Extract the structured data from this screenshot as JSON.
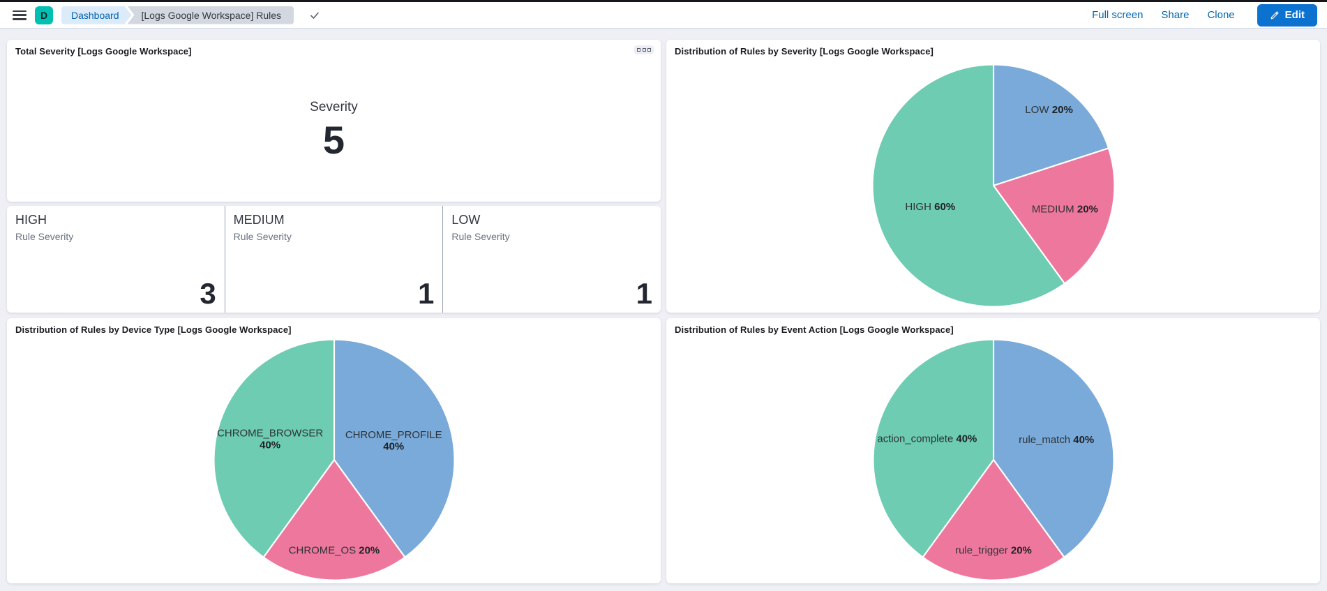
{
  "topbar": {
    "space_avatar": {
      "label": "D",
      "color": "#00BFB3"
    },
    "breadcrumbs": [
      {
        "label": "Dashboard"
      },
      {
        "label": "[Logs Google Workspace] Rules"
      }
    ],
    "actions": [
      {
        "label": "Full screen"
      },
      {
        "label": "Share"
      },
      {
        "label": "Clone"
      }
    ],
    "edit_button": {
      "label": "Edit",
      "icon": "pencil-icon"
    }
  },
  "colors": {
    "accent_space": "#00BFB3",
    "primary_button": "#0b72d0",
    "link": "#0066ae",
    "pie_green": "#6DCCB1",
    "pie_blue": "#79AAD9",
    "pie_pink": "#EE789D"
  },
  "panels": {
    "total_severity": {
      "title": "Total Severity [Logs Google Workspace]",
      "metric": {
        "label": "Severity",
        "value": "5"
      }
    },
    "severity_breakdown": {
      "metrics": [
        {
          "title": "HIGH",
          "subtitle": "Rule Severity",
          "value": "3"
        },
        {
          "title": "MEDIUM",
          "subtitle": "Rule Severity",
          "value": "1"
        },
        {
          "title": "LOW",
          "subtitle": "Rule Severity",
          "value": "1"
        }
      ]
    }
  },
  "chart_data": [
    {
      "id": "severity_pie",
      "type": "pie",
      "title": "Distribution of Rules by Severity [Logs Google Workspace]",
      "legend": "off",
      "labels_inside": true,
      "start_angle": "top",
      "direction": "clockwise",
      "slices": [
        {
          "label": "LOW",
          "pct": 20,
          "color": "#79AAD9",
          "label_r": 0.78,
          "label_layout": "inline"
        },
        {
          "label": "MEDIUM",
          "pct": 20,
          "color": "#EE789D",
          "label_r": 0.62,
          "label_layout": "inline"
        },
        {
          "label": "HIGH",
          "pct": 60,
          "color": "#6DCCB1",
          "label_r": 0.55,
          "label_layout": "inline"
        }
      ]
    },
    {
      "id": "device_type_pie",
      "type": "pie",
      "title": "Distribution of Rules by Device Type [Logs Google Workspace]",
      "legend": "off",
      "labels_inside": true,
      "start_angle": "top",
      "direction": "clockwise",
      "slices": [
        {
          "label": "CHROME_PROFILE",
          "pct": 40,
          "color": "#79AAD9",
          "label_r": 0.52,
          "label_layout": "stacked"
        },
        {
          "label": "CHROME_OS",
          "pct": 20,
          "color": "#EE789D",
          "label_r": 0.75,
          "label_layout": "inline"
        },
        {
          "label": "CHROME_BROWSER",
          "pct": 40,
          "color": "#6DCCB1",
          "label_r": 0.56,
          "label_layout": "stacked"
        }
      ]
    },
    {
      "id": "event_action_pie",
      "type": "pie",
      "title": "Distribution of Rules by Event Action [Logs Google Workspace]",
      "legend": "off",
      "labels_inside": true,
      "start_angle": "top",
      "direction": "clockwise",
      "slices": [
        {
          "label": "rule_match",
          "pct": 40,
          "color": "#79AAD9",
          "label_r": 0.55,
          "label_layout": "inline"
        },
        {
          "label": "rule_trigger",
          "pct": 20,
          "color": "#EE789D",
          "label_r": 0.75,
          "label_layout": "inline"
        },
        {
          "label": "action_complete",
          "pct": 40,
          "color": "#6DCCB1",
          "label_r": 0.58,
          "label_layout": "inline"
        }
      ]
    }
  ]
}
